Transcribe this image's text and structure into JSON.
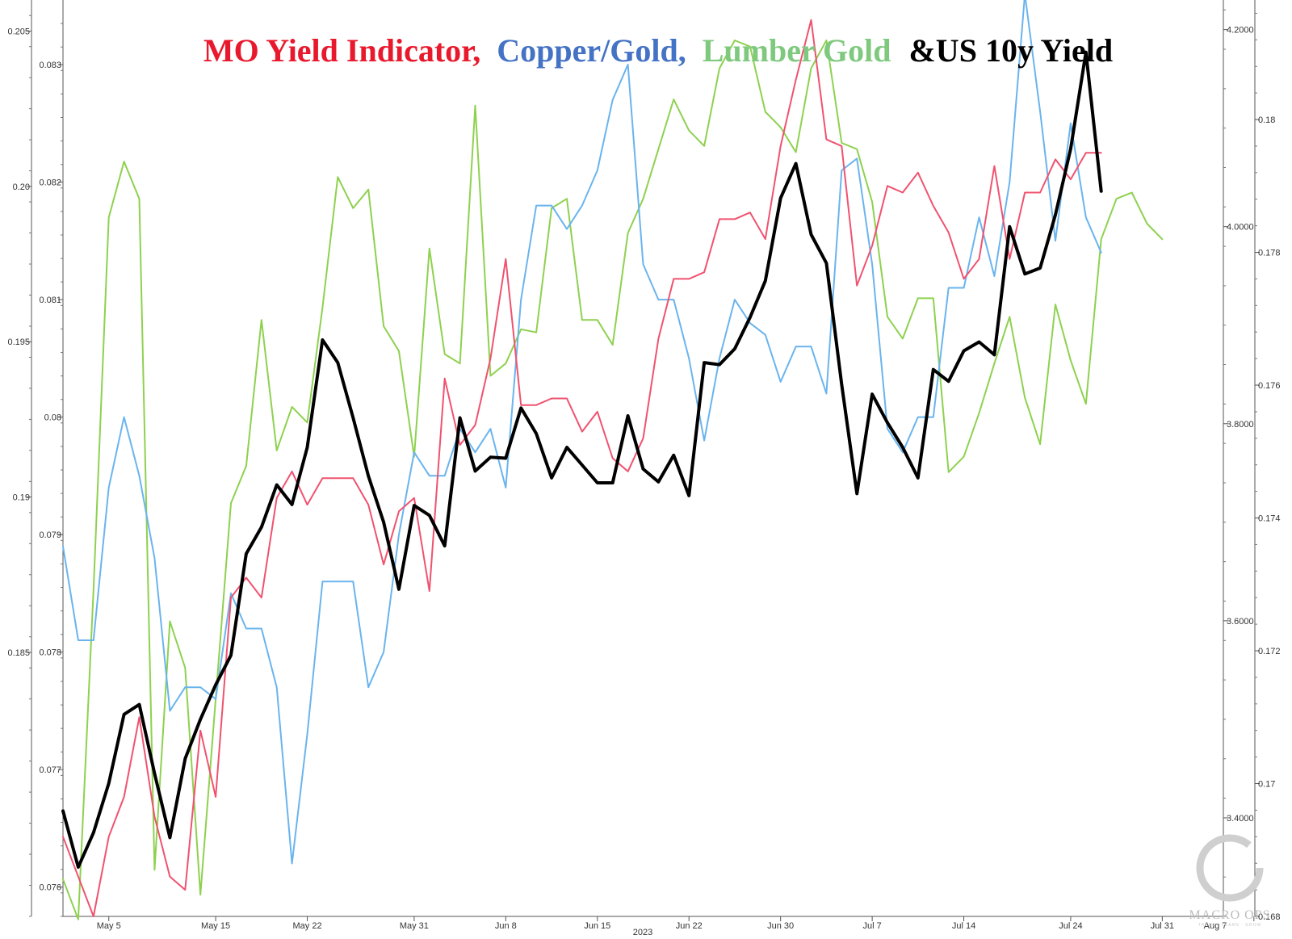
{
  "chart_data": {
    "type": "line",
    "title": {
      "parts": [
        {
          "text": "MO Yield Indicator,",
          "color": "#e8192c"
        },
        {
          "text": "Copper/Gold,",
          "color": "#4472c4"
        },
        {
          "text": "Lumber Gold",
          "color": "#7fc97f"
        },
        {
          "text": "&US 10y Yield",
          "color": "#000000"
        }
      ]
    },
    "x_axis": {
      "tick_labels": [
        "May 5",
        "May 15",
        "May 22",
        "May 31",
        "Jun 8",
        "Jun 15",
        "Jun 22",
        "Jun 30",
        "Jul 7",
        "Jul 14",
        "Jul 24",
        "Jul 31",
        "Aug 7"
      ],
      "tick_index": [
        3,
        10,
        16,
        23,
        29,
        35,
        41,
        47,
        53,
        59,
        66,
        72,
        78
      ],
      "year_label": "2023",
      "num_points": 77
    },
    "axes": {
      "left_outer": {
        "ticks": [
          0.205,
          0.2,
          0.195,
          0.19,
          0.185
        ],
        "labels": [
          "0.205",
          "0.20",
          "0.195",
          "0.19",
          "0.185"
        ],
        "range": [
          0.1765,
          0.206
        ]
      },
      "left_inner": {
        "ticks": [
          0.083,
          0.082,
          0.081,
          0.08,
          0.079,
          0.078,
          0.077,
          0.076
        ],
        "labels": [
          "0.083",
          "0.082",
          "0.081",
          "0.08",
          "0.079",
          "0.078",
          "0.077",
          "0.076"
        ],
        "range": [
          0.07575,
          0.08355
        ]
      },
      "right_inner": {
        "ticks": [
          4.2,
          4.0,
          3.8,
          3.6,
          3.4
        ],
        "labels": [
          "4.2000",
          "4.0000",
          "3.8000",
          "3.6000",
          "3.4000"
        ],
        "range": [
          3.3,
          4.23
        ]
      },
      "right_outer": {
        "ticks": [
          0.18,
          0.178,
          0.176,
          0.174,
          0.172,
          0.17,
          0.168
        ],
        "labels": [
          "0.18",
          "0.178",
          "0.176",
          "0.174",
          "0.172",
          "0.17",
          "0.168"
        ],
        "range": [
          0.168,
          0.1818
        ]
      }
    },
    "series": [
      {
        "name": "Lumber Gold",
        "color": "#8ed14f",
        "width": 2,
        "axis": "left_outer",
        "values": [
          0.1777,
          0.1764,
          0.187,
          0.199,
          0.2008,
          0.1996,
          0.178,
          0.186,
          0.1845,
          0.1772,
          0.1835,
          0.1898,
          0.191,
          0.1957,
          0.1915,
          0.1929,
          0.1924,
          0.1961,
          0.2003,
          0.1993,
          0.1999,
          0.1955,
          0.1947,
          0.1913,
          0.198,
          0.1946,
          0.1943,
          0.2026,
          0.1939,
          0.1943,
          0.1954,
          0.1953,
          0.1993,
          0.1996,
          0.1957,
          0.1957,
          0.1949,
          0.1985,
          0.1996,
          0.2012,
          0.2028,
          0.2018,
          0.2013,
          0.2038,
          0.2047,
          0.2045,
          0.2024,
          0.2019,
          0.2011,
          0.2038,
          0.2047,
          0.2014,
          0.2012,
          0.1995,
          0.1958,
          0.1951,
          0.1964,
          0.1964,
          0.1908,
          0.1913,
          0.1927,
          0.1943,
          0.1958,
          0.1932,
          0.1917,
          0.1962,
          0.1944,
          0.193,
          0.1983,
          0.1996,
          0.1998,
          0.1988,
          0.1983
        ]
      },
      {
        "name": "Copper/Gold",
        "color": "#6ab4ee",
        "width": 2,
        "axis": "left_inner",
        "values": [
          0.0789,
          0.0781,
          0.0781,
          0.0794,
          0.08,
          0.0795,
          0.0788,
          0.0775,
          0.0777,
          0.0777,
          0.0776,
          0.0785,
          0.0782,
          0.0782,
          0.0777,
          0.0762,
          0.0773,
          0.0786,
          0.0786,
          0.0786,
          0.0777,
          0.078,
          0.079,
          0.0797,
          0.0795,
          0.0795,
          0.0799,
          0.0797,
          0.0799,
          0.0794,
          0.081,
          0.0818,
          0.0818,
          0.0816,
          0.0818,
          0.0821,
          0.0827,
          0.083,
          0.0813,
          0.081,
          0.081,
          0.0805,
          0.0798,
          0.0805,
          0.081,
          0.0808,
          0.0807,
          0.0803,
          0.0806,
          0.0806,
          0.0802,
          0.0821,
          0.0822,
          0.0813,
          0.0799,
          0.0797,
          0.08,
          0.08,
          0.0811,
          0.0811,
          0.0817,
          0.0812,
          0.082,
          0.0836,
          0.0826,
          0.0815,
          0.0825,
          0.0817,
          0.0814
        ]
      },
      {
        "name": "MO Yield Indicator",
        "color": "#f0526f",
        "width": 2,
        "axis": "right_outer",
        "values": [
          0.1692,
          0.1686,
          0.168,
          0.1692,
          0.1698,
          0.171,
          0.1695,
          0.1686,
          0.1684,
          0.1708,
          0.1698,
          0.1728,
          0.1731,
          0.1728,
          0.1743,
          0.1747,
          0.1742,
          0.1746,
          0.1746,
          0.1746,
          0.1742,
          0.1733,
          0.1741,
          0.1743,
          0.1729,
          0.1761,
          0.1751,
          0.1754,
          0.1764,
          0.1779,
          0.1757,
          0.1757,
          0.1758,
          0.1758,
          0.1753,
          0.1756,
          0.1749,
          0.1747,
          0.1752,
          0.1767,
          0.1776,
          0.1776,
          0.1777,
          0.1785,
          0.1785,
          0.1786,
          0.1782,
          0.1796,
          0.1806,
          0.1815,
          0.1797,
          0.1796,
          0.1775,
          0.1781,
          0.179,
          0.1789,
          0.1792,
          0.1787,
          0.1783,
          0.1776,
          0.1779,
          0.1793,
          0.1779,
          0.1789,
          0.1789,
          0.1794,
          0.1791,
          0.1795,
          0.1795
        ]
      },
      {
        "name": "US 10y Yield",
        "color": "#000000",
        "width": 4,
        "axis": "right_inner",
        "values": [
          3.407,
          3.35,
          3.385,
          3.435,
          3.505,
          3.515,
          3.445,
          3.38,
          3.46,
          3.5,
          3.535,
          3.565,
          3.668,
          3.695,
          3.738,
          3.718,
          3.776,
          3.885,
          3.862,
          3.806,
          3.747,
          3.7,
          3.632,
          3.717,
          3.707,
          3.676,
          3.806,
          3.752,
          3.766,
          3.765,
          3.816,
          3.79,
          3.745,
          3.776,
          3.758,
          3.74,
          3.74,
          3.808,
          3.754,
          3.741,
          3.768,
          3.727,
          3.862,
          3.86,
          3.876,
          3.908,
          3.945,
          4.029,
          4.064,
          3.992,
          3.963,
          3.84,
          3.729,
          3.83,
          3.801,
          3.776,
          3.745,
          3.855,
          3.843,
          3.874,
          3.883,
          3.87,
          4.0,
          3.952,
          3.958,
          4.012,
          4.079,
          4.177,
          4.036
        ]
      }
    ],
    "grid": false,
    "legend": "none"
  },
  "watermark": {
    "brand": "MACRO OPS",
    "tagline": "TRADE · LEARN · GROW"
  }
}
